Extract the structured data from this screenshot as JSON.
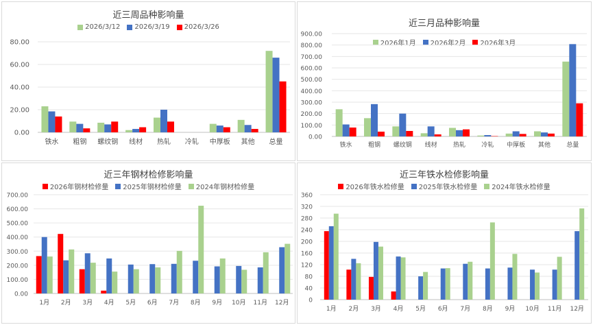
{
  "colors": {
    "green": "#a9d18e",
    "blue": "#4472c4",
    "red": "#ff0000",
    "grid": "#e6e6e6",
    "axis": "#bfbfbf"
  },
  "chart_data": [
    {
      "type": "bar",
      "title": "近三周品种影响量",
      "categories": [
        "铁水",
        "粗钢",
        "螺纹钢",
        "线材",
        "热轧",
        "冷轧",
        "中厚板",
        "其他",
        "总量"
      ],
      "ylim": [
        0,
        80
      ],
      "yticks": [
        "0.00",
        "20.00",
        "40.00",
        "60.00",
        "80.00"
      ],
      "legend_position": "top",
      "series": [
        {
          "name": "2026/3/12",
          "color": "green",
          "values": [
            23,
            9.5,
            8.5,
            2,
            13,
            0,
            7.5,
            11,
            72
          ]
        },
        {
          "name": "2026/3/19",
          "color": "blue",
          "values": [
            18.5,
            7.5,
            7,
            3,
            20,
            0,
            6,
            6.5,
            66
          ]
        },
        {
          "name": "2026/3/26",
          "color": "red",
          "values": [
            14,
            3.5,
            9.5,
            4.5,
            9.5,
            0,
            4.5,
            3,
            45
          ]
        }
      ]
    },
    {
      "type": "bar",
      "title": "近三月品种影响量",
      "categories": [
        "铁水",
        "粗钢",
        "螺纹钢",
        "线材",
        "热轧",
        "冷轧",
        "中厚板",
        "其他",
        "总量"
      ],
      "ylim": [
        0,
        900
      ],
      "yticks": [
        "0.00",
        "100.00",
        "200.00",
        "300.00",
        "400.00",
        "500.00",
        "600.00",
        "700.00",
        "800.00",
        "900.00"
      ],
      "legend_position": "top",
      "series": [
        {
          "name": "2026年1月",
          "color": "green",
          "values": [
            238,
            160,
            88,
            28,
            75,
            8,
            25,
            45,
            655
          ]
        },
        {
          "name": "2026年2月",
          "color": "blue",
          "values": [
            105,
            283,
            200,
            88,
            55,
            12,
            45,
            35,
            808
          ]
        },
        {
          "name": "2026年3月",
          "color": "red",
          "values": [
            78,
            42,
            48,
            18,
            62,
            3,
            22,
            25,
            290
          ]
        }
      ]
    },
    {
      "type": "bar",
      "title": "近三年钢材检修影响量",
      "categories": [
        "1月",
        "2月",
        "3月",
        "4月",
        "5月",
        "6月",
        "7月",
        "8月",
        "9月",
        "10月",
        "11月",
        "12月"
      ],
      "ylim": [
        0,
        700
      ],
      "yticks": [
        "0.00",
        "100.00",
        "200.00",
        "300.00",
        "400.00",
        "500.00",
        "600.00",
        "700.00"
      ],
      "legend_position": "top",
      "series": [
        {
          "name": "2026年钢材检修量",
          "color": "red",
          "values": [
            265,
            422,
            172,
            20,
            null,
            null,
            null,
            null,
            null,
            null,
            null,
            null
          ]
        },
        {
          "name": "2025年钢材检修量",
          "color": "blue",
          "values": [
            400,
            235,
            285,
            248,
            205,
            208,
            210,
            232,
            192,
            195,
            185,
            328
          ]
        },
        {
          "name": "2024年钢材检修量",
          "color": "green",
          "values": [
            262,
            312,
            218,
            155,
            172,
            185,
            302,
            622,
            248,
            168,
            292,
            352
          ]
        }
      ]
    },
    {
      "type": "bar",
      "title": "近三年铁水检修影响量",
      "categories": [
        "1月",
        "2月",
        "3月",
        "4月",
        "5月",
        "6月",
        "7月",
        "8月",
        "9月",
        "10月",
        "11月",
        "12月"
      ],
      "ylim": [
        0,
        360
      ],
      "yticks": [
        "0",
        "40",
        "80",
        "120",
        "160",
        "200",
        "240",
        "280",
        "320",
        "360"
      ],
      "legend_position": "top",
      "series": [
        {
          "name": "2026年铁水检修量",
          "color": "red",
          "values": [
            235,
            103,
            78,
            28,
            null,
            null,
            null,
            null,
            null,
            null,
            null,
            null
          ]
        },
        {
          "name": "2025年铁水检修量",
          "color": "blue",
          "values": [
            252,
            140,
            198,
            148,
            80,
            107,
            123,
            107,
            110,
            103,
            103,
            235
          ]
        },
        {
          "name": "2024年铁水检修量",
          "color": "green",
          "values": [
            295,
            125,
            182,
            145,
            95,
            108,
            130,
            265,
            157,
            93,
            147,
            313
          ]
        }
      ]
    }
  ]
}
